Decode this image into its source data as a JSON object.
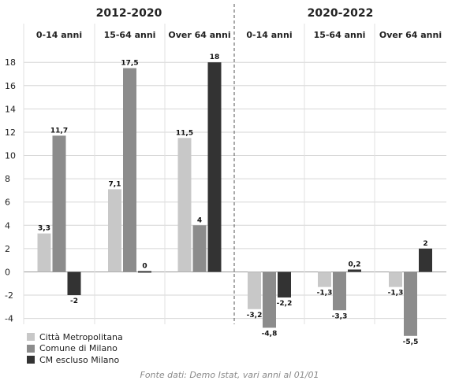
{
  "chart_data": {
    "type": "bar",
    "periods": [
      {
        "label": "2012-2020",
        "groups": [
          "0-14 anni",
          "15-64 anni",
          "Over 64 anni"
        ]
      },
      {
        "label": "2020-2022",
        "groups": [
          "0-14 anni",
          "15-64 anni",
          "Over 64 anni"
        ]
      }
    ],
    "series": [
      {
        "name": "Città Metropolitana",
        "color": "#c8c8c8",
        "values": [
          3.3,
          7.1,
          11.5,
          -3.2,
          -1.3,
          -1.3
        ]
      },
      {
        "name": "Comune di Milano",
        "color": "#8c8c8c",
        "values": [
          11.7,
          17.5,
          4,
          -4.8,
          -3.3,
          -5.5
        ]
      },
      {
        "name": "CM escluso Milano",
        "color": "#333333",
        "values": [
          -2,
          0,
          18,
          -2.2,
          0.2,
          2
        ]
      }
    ],
    "value_labels": [
      [
        "3,3",
        "7,1",
        "11,5",
        "-3,2",
        "-1,3",
        "-1,3"
      ],
      [
        "11,7",
        "17,5",
        "4",
        "-4,8",
        "-3,3",
        "-5,5"
      ],
      [
        "-2",
        "0",
        "18",
        "-2,2",
        "0,2",
        "2"
      ]
    ],
    "yticks": [
      18,
      16,
      14,
      12,
      10,
      8,
      6,
      4,
      2,
      0,
      -2,
      -4
    ],
    "ylim": [
      -4.5,
      19.5
    ],
    "grid": true,
    "legend_position": "bottom-left"
  },
  "source_note": "Fonte dati: Demo Istat, vari anni al 01/01"
}
